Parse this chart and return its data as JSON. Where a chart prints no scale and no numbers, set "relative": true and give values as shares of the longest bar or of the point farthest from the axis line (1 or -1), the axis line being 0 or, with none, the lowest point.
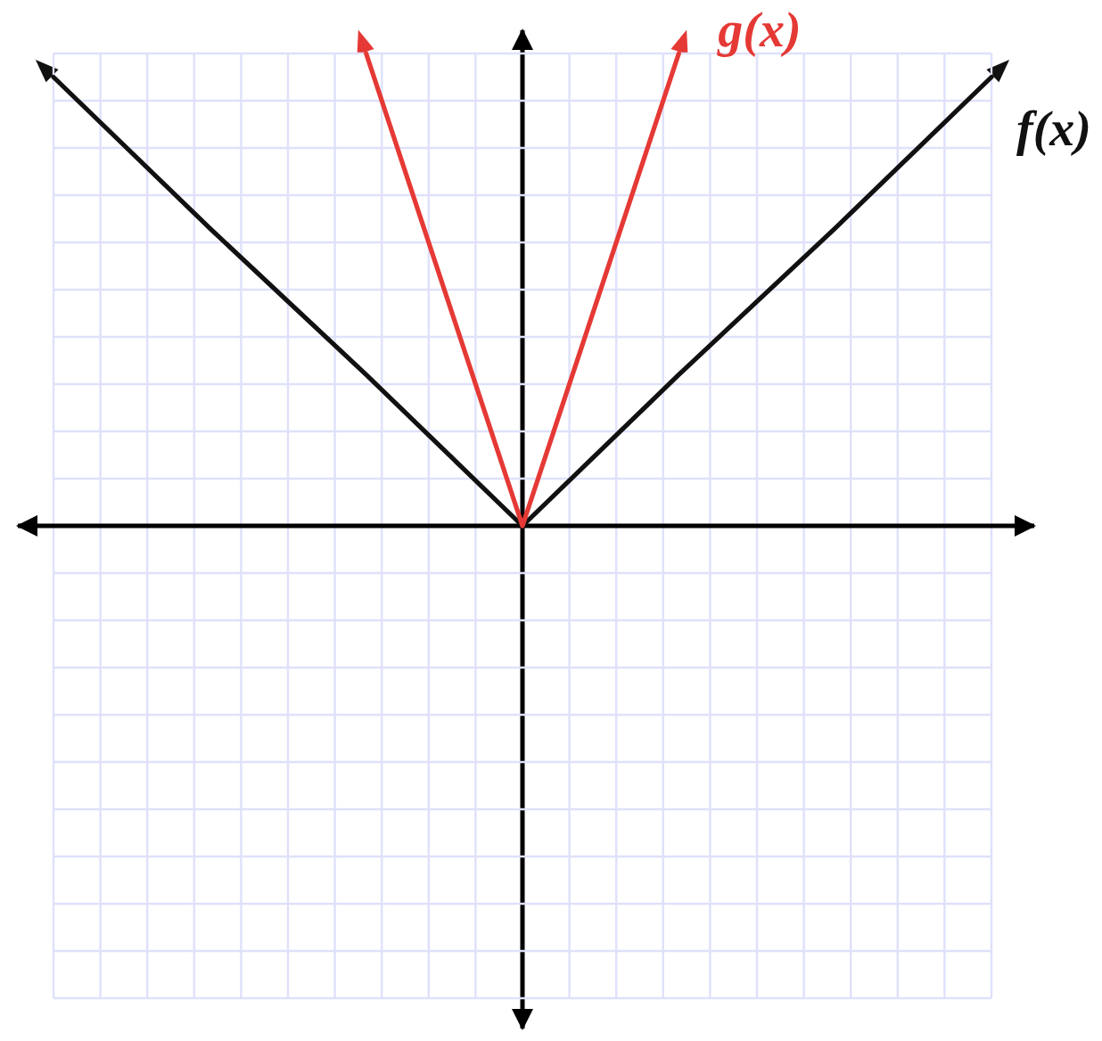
{
  "chart_data": {
    "type": "line",
    "relative": true,
    "categories": [
      null,
      null,
      null,
      null,
      null,
      null,
      null
    ],
    "series": [
      {
        "name": "f(x)",
        "color": "#111111",
        "values": [
          0.95,
          0.63,
          0.32,
          0,
          0.32,
          0.63,
          0.95
        ]
      },
      {
        "name": "g(x)",
        "color": "#e53935",
        "values": [
          null,
          null,
          1,
          0,
          1,
          null,
          null
        ]
      }
    ],
    "grid": true,
    "marker": "none"
  }
}
